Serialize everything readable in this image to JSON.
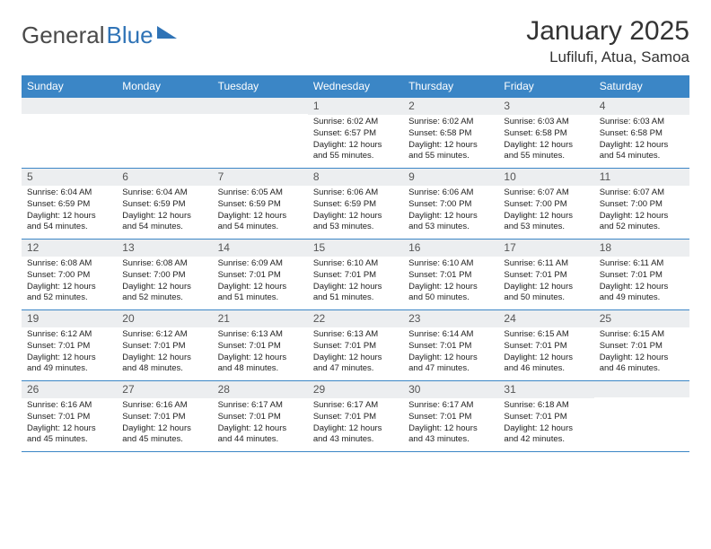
{
  "brand": {
    "part1": "General",
    "part2": "Blue"
  },
  "title": "January 2025",
  "location": "Lufilufi, Atua, Samoa",
  "colors": {
    "header_bg": "#3b86c6",
    "header_text": "#ffffff",
    "stripe_bg": "#eceef0",
    "border": "#3b86c6",
    "text": "#222222",
    "logo_gray": "#4a4a4a",
    "logo_blue": "#2f73b6"
  },
  "day_headers": [
    "Sunday",
    "Monday",
    "Tuesday",
    "Wednesday",
    "Thursday",
    "Friday",
    "Saturday"
  ],
  "weeks": [
    [
      {
        "blank": true
      },
      {
        "blank": true
      },
      {
        "blank": true
      },
      {
        "n": "1",
        "sunrise": "6:02 AM",
        "sunset": "6:57 PM",
        "daylight": "12 hours and 55 minutes."
      },
      {
        "n": "2",
        "sunrise": "6:02 AM",
        "sunset": "6:58 PM",
        "daylight": "12 hours and 55 minutes."
      },
      {
        "n": "3",
        "sunrise": "6:03 AM",
        "sunset": "6:58 PM",
        "daylight": "12 hours and 55 minutes."
      },
      {
        "n": "4",
        "sunrise": "6:03 AM",
        "sunset": "6:58 PM",
        "daylight": "12 hours and 54 minutes."
      }
    ],
    [
      {
        "n": "5",
        "sunrise": "6:04 AM",
        "sunset": "6:59 PM",
        "daylight": "12 hours and 54 minutes."
      },
      {
        "n": "6",
        "sunrise": "6:04 AM",
        "sunset": "6:59 PM",
        "daylight": "12 hours and 54 minutes."
      },
      {
        "n": "7",
        "sunrise": "6:05 AM",
        "sunset": "6:59 PM",
        "daylight": "12 hours and 54 minutes."
      },
      {
        "n": "8",
        "sunrise": "6:06 AM",
        "sunset": "6:59 PM",
        "daylight": "12 hours and 53 minutes."
      },
      {
        "n": "9",
        "sunrise": "6:06 AM",
        "sunset": "7:00 PM",
        "daylight": "12 hours and 53 minutes."
      },
      {
        "n": "10",
        "sunrise": "6:07 AM",
        "sunset": "7:00 PM",
        "daylight": "12 hours and 53 minutes."
      },
      {
        "n": "11",
        "sunrise": "6:07 AM",
        "sunset": "7:00 PM",
        "daylight": "12 hours and 52 minutes."
      }
    ],
    [
      {
        "n": "12",
        "sunrise": "6:08 AM",
        "sunset": "7:00 PM",
        "daylight": "12 hours and 52 minutes."
      },
      {
        "n": "13",
        "sunrise": "6:08 AM",
        "sunset": "7:00 PM",
        "daylight": "12 hours and 52 minutes."
      },
      {
        "n": "14",
        "sunrise": "6:09 AM",
        "sunset": "7:01 PM",
        "daylight": "12 hours and 51 minutes."
      },
      {
        "n": "15",
        "sunrise": "6:10 AM",
        "sunset": "7:01 PM",
        "daylight": "12 hours and 51 minutes."
      },
      {
        "n": "16",
        "sunrise": "6:10 AM",
        "sunset": "7:01 PM",
        "daylight": "12 hours and 50 minutes."
      },
      {
        "n": "17",
        "sunrise": "6:11 AM",
        "sunset": "7:01 PM",
        "daylight": "12 hours and 50 minutes."
      },
      {
        "n": "18",
        "sunrise": "6:11 AM",
        "sunset": "7:01 PM",
        "daylight": "12 hours and 49 minutes."
      }
    ],
    [
      {
        "n": "19",
        "sunrise": "6:12 AM",
        "sunset": "7:01 PM",
        "daylight": "12 hours and 49 minutes."
      },
      {
        "n": "20",
        "sunrise": "6:12 AM",
        "sunset": "7:01 PM",
        "daylight": "12 hours and 48 minutes."
      },
      {
        "n": "21",
        "sunrise": "6:13 AM",
        "sunset": "7:01 PM",
        "daylight": "12 hours and 48 minutes."
      },
      {
        "n": "22",
        "sunrise": "6:13 AM",
        "sunset": "7:01 PM",
        "daylight": "12 hours and 47 minutes."
      },
      {
        "n": "23",
        "sunrise": "6:14 AM",
        "sunset": "7:01 PM",
        "daylight": "12 hours and 47 minutes."
      },
      {
        "n": "24",
        "sunrise": "6:15 AM",
        "sunset": "7:01 PM",
        "daylight": "12 hours and 46 minutes."
      },
      {
        "n": "25",
        "sunrise": "6:15 AM",
        "sunset": "7:01 PM",
        "daylight": "12 hours and 46 minutes."
      }
    ],
    [
      {
        "n": "26",
        "sunrise": "6:16 AM",
        "sunset": "7:01 PM",
        "daylight": "12 hours and 45 minutes."
      },
      {
        "n": "27",
        "sunrise": "6:16 AM",
        "sunset": "7:01 PM",
        "daylight": "12 hours and 45 minutes."
      },
      {
        "n": "28",
        "sunrise": "6:17 AM",
        "sunset": "7:01 PM",
        "daylight": "12 hours and 44 minutes."
      },
      {
        "n": "29",
        "sunrise": "6:17 AM",
        "sunset": "7:01 PM",
        "daylight": "12 hours and 43 minutes."
      },
      {
        "n": "30",
        "sunrise": "6:17 AM",
        "sunset": "7:01 PM",
        "daylight": "12 hours and 43 minutes."
      },
      {
        "n": "31",
        "sunrise": "6:18 AM",
        "sunset": "7:01 PM",
        "daylight": "12 hours and 42 minutes."
      },
      {
        "blank": true
      }
    ]
  ],
  "labels": {
    "sunrise": "Sunrise:",
    "sunset": "Sunset:",
    "daylight": "Daylight:"
  }
}
